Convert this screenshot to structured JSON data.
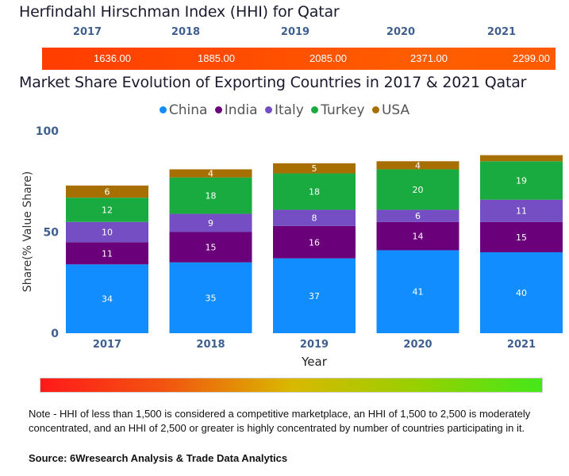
{
  "hhi": {
    "title": "Herfindahl Hirschman Index (HHI) for Qatar",
    "years": [
      "2017",
      "2018",
      "2019",
      "2020",
      "2021"
    ],
    "values": [
      "1636.00",
      "1885.00",
      "2085.00",
      "2371.00",
      "2299.00"
    ],
    "bar_color": "#ff4d00"
  },
  "chart_data": {
    "type": "bar",
    "stacked": true,
    "title": "Market Share Evolution of Exporting Countries in 2017 & 2021 Qatar",
    "xlabel": "Year",
    "ylabel": "Share(% Value Share)",
    "ylim": [
      0,
      100
    ],
    "yticks": [
      "0",
      "50",
      "100"
    ],
    "categories": [
      "2017",
      "2018",
      "2019",
      "2020",
      "2021"
    ],
    "legend_position": "top-center",
    "grid": false,
    "series": [
      {
        "name": "China",
        "color": "#118dff",
        "values": [
          34,
          35,
          37,
          41,
          40
        ],
        "labels": [
          "34",
          "35",
          "37",
          "41",
          "40"
        ]
      },
      {
        "name": "India",
        "color": "#6b007b",
        "values": [
          11,
          15,
          16,
          14,
          15
        ],
        "labels": [
          "11",
          "15",
          "16",
          "14",
          "15"
        ]
      },
      {
        "name": "Italy",
        "color": "#744ec2",
        "values": [
          10,
          9,
          8,
          6,
          11
        ],
        "labels": [
          "10",
          "9",
          "8",
          "6",
          "11"
        ]
      },
      {
        "name": "Turkey",
        "color": "#1aab40",
        "values": [
          12,
          18,
          18,
          20,
          19
        ],
        "labels": [
          "12",
          "18",
          "18",
          "20",
          "19"
        ]
      },
      {
        "name": "USA",
        "color": "#a66f00",
        "values": [
          6,
          4,
          5,
          4,
          3
        ],
        "labels": [
          "6",
          "4",
          "5",
          "4",
          ""
        ]
      }
    ]
  },
  "legend": {
    "items": [
      {
        "label": "China",
        "color": "#118dff"
      },
      {
        "label": "India",
        "color": "#6b007b"
      },
      {
        "label": "Italy",
        "color": "#744ec2"
      },
      {
        "label": "Turkey",
        "color": "#1aab40"
      },
      {
        "label": "USA",
        "color": "#a66f00"
      }
    ]
  },
  "scale": {
    "colors": [
      "#ff1a1a",
      "#d9b800",
      "#44e81a"
    ]
  },
  "note": "Note - HHI of less than 1,500 is considered a competitive marketplace, an HHI of 1,500 to 2,500 is moderately concentrated, and an HHI of 2,500 or greater is highly concentrated by number of countries participating in it.",
  "source": "Source: 6Wresearch Analysis & Trade Data Analytics"
}
